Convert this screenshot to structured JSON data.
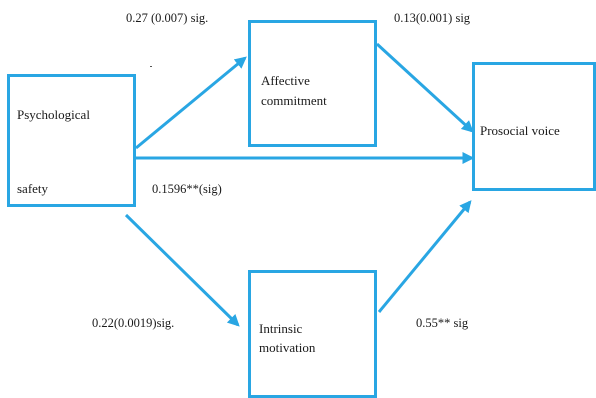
{
  "diagram": {
    "line_color": "#29a6e3",
    "nodes": {
      "psychological_safety": {
        "line1": "Psychological",
        "line2": "safety"
      },
      "affective_commitment": {
        "line1": "Affective",
        "line2": "commitment"
      },
      "intrinsic_motivation": {
        "line1": "Intrinsic",
        "line2": "motivation"
      },
      "prosocial_voice": {
        "line1": "Prosocial voice"
      }
    },
    "edges": {
      "safety_to_commitment": "0.27 (0.007) sig.",
      "commitment_to_voice": "0.13(0.001) sig",
      "safety_to_voice": "0.1596**(sig)",
      "safety_to_motivation": "0.22(0.0019)sig.",
      "motivation_to_voice": "0.55** sig"
    }
  }
}
